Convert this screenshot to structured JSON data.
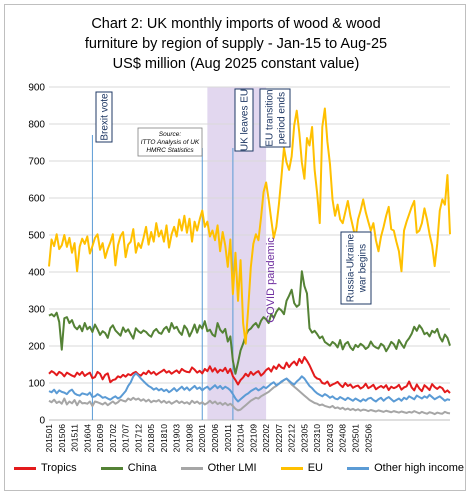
{
  "title_lines": [
    "Chart 2: UK monthly imports of wood & wood",
    "furniture by region of supply - Jan-15 to Aug-25",
    "US$ million (Aug 2025 constant value)"
  ],
  "annotations": {
    "brexit_vote": "Brexit vote",
    "uk_leaves_eu": "UK leaves EU",
    "transition_ends": "EU transition period ends",
    "covid": "COVID pandemic",
    "russia_ukraine": "Russia-Ukraine war begins",
    "source": [
      "Source:",
      "ITTO Analysis of UK",
      "HMRC Statistics"
    ]
  },
  "chart_data": {
    "type": "line",
    "ylim": [
      0,
      900
    ],
    "yticks": [
      0,
      100,
      200,
      300,
      400,
      500,
      600,
      700,
      800,
      900
    ],
    "grid": true,
    "legend_position": "bottom",
    "x_tick_labels": [
      "201501",
      "201506",
      "201511",
      "201604",
      "201609",
      "201702",
      "201707",
      "201712",
      "201805",
      "201810",
      "201903",
      "201908",
      "202001",
      "202006",
      "202011",
      "202104",
      "202109",
      "202202",
      "202207",
      "202212",
      "202305",
      "202310",
      "202403",
      "202408",
      "202501",
      "202506"
    ],
    "x_start": "2015-01",
    "markers": {
      "brexit_vote": "2016-06",
      "covid_start": "2020-03",
      "covid_end": "2022-02",
      "uk_leaves_eu": "2020-01",
      "transition_ends": "2021-01",
      "russia_ukraine": "2022-02"
    },
    "series": [
      {
        "name": "Tropics",
        "color": "#e31a1c",
        "values": [
          125,
          132,
          128,
          121,
          130,
          126,
          118,
          128,
          124,
          120,
          117,
          128,
          122,
          130,
          119,
          124,
          128,
          113,
          116,
          130,
          125,
          110,
          122,
          126,
          102,
          108,
          110,
          118,
          115,
          122,
          117,
          124,
          121,
          127,
          130,
          123,
          120,
          128,
          124,
          133,
          125,
          130,
          122,
          127,
          131,
          136,
          128,
          132,
          125,
          130,
          134,
          127,
          138,
          133,
          130,
          129,
          142,
          136,
          128,
          133,
          126,
          138,
          132,
          145,
          131,
          140,
          128,
          136,
          132,
          141,
          127,
          138,
          118,
          108,
          96,
          108,
          115,
          125,
          118,
          130,
          122,
          128,
          132,
          120,
          126,
          135,
          140,
          131,
          145,
          138,
          150,
          142,
          139,
          155,
          143,
          152,
          158,
          148,
          165,
          154,
          170,
          160,
          148,
          133,
          118,
          112,
          110,
          100,
          98,
          104,
          92,
          96,
          99,
          103,
          95,
          89,
          100,
          92,
          96,
          87,
          91,
          93,
          85,
          89,
          98,
          86,
          90,
          95,
          83,
          88,
          92,
          87,
          94,
          81,
          90,
          86,
          89,
          95,
          82,
          88,
          91,
          104,
          88,
          80,
          96,
          85,
          78,
          94,
          88,
          81,
          97,
          89,
          84,
          90,
          86,
          75,
          80,
          73
        ]
      },
      {
        "name": "China",
        "color": "#548235",
        "values": [
          282,
          286,
          280,
          290,
          265,
          190,
          275,
          278,
          262,
          270,
          252,
          245,
          255,
          240,
          262,
          245,
          252,
          238,
          258,
          245,
          230,
          240,
          235,
          222,
          248,
          256,
          242,
          235,
          228,
          250,
          238,
          245,
          232,
          220,
          248,
          240,
          235,
          242,
          238,
          230,
          225,
          240,
          246,
          236,
          233,
          246,
          252,
          238,
          262,
          247,
          252,
          238,
          230,
          255,
          246,
          226,
          240,
          258,
          236,
          256,
          247,
          267,
          240,
          244,
          231,
          226,
          262,
          244,
          236,
          246,
          212,
          226,
          160,
          125,
          155,
          188,
          206,
          228,
          242,
          247,
          256,
          262,
          250,
          268,
          278,
          272,
          262,
          286,
          276,
          292,
          302,
          296,
          286,
          322,
          336,
          352,
          316,
          306,
          312,
          402,
          362,
          342,
          248,
          236,
          241,
          232,
          221,
          226,
          211,
          206,
          201,
          211,
          206,
          196,
          216,
          191,
          206,
          211,
          196,
          189,
          203,
          197,
          206,
          201,
          192,
          197,
          212,
          201,
          196,
          193,
          206,
          201,
          186,
          197,
          211,
          205,
          192,
          216,
          205,
          195,
          212,
          221,
          233,
          252,
          241,
          256,
          247,
          232,
          236,
          226,
          241,
          236,
          246,
          224,
          212,
          231,
          222,
          201
        ]
      },
      {
        "name": "Other LMI",
        "color": "#a6a6a6",
        "values": [
          52,
          48,
          55,
          46,
          50,
          44,
          58,
          42,
          50,
          45,
          54,
          40,
          52,
          45,
          46,
          44,
          50,
          38,
          50,
          48,
          45,
          42,
          47,
          40,
          45,
          50,
          44,
          48,
          55,
          52,
          50,
          58,
          54,
          60,
          55,
          58,
          52,
          56,
          50,
          55,
          48,
          52,
          50,
          54,
          47,
          52,
          46,
          50,
          44,
          48,
          52,
          46,
          50,
          45,
          48,
          43,
          52,
          46,
          50,
          44,
          48,
          42,
          46,
          52,
          45,
          50,
          43,
          47,
          41,
          46,
          40,
          44,
          38,
          30,
          26,
          28,
          34,
          40,
          46,
          52,
          56,
          60,
          58,
          64,
          68,
          72,
          76,
          82,
          88,
          92,
          98,
          102,
          108,
          112,
          104,
          96,
          90,
          84,
          78,
          72,
          66,
          60,
          54,
          50,
          46,
          44,
          40,
          42,
          38,
          36,
          34,
          38,
          32,
          34,
          30,
          33,
          28,
          31,
          27,
          30,
          26,
          29,
          25,
          28,
          27,
          24,
          27,
          25,
          23,
          26,
          24,
          22,
          25,
          23,
          21,
          24,
          22,
          20,
          23,
          21,
          19,
          22,
          20,
          24,
          21,
          18,
          22,
          19,
          17,
          21,
          19,
          16,
          20,
          18,
          17,
          22,
          19,
          18
        ]
      },
      {
        "name": "EU",
        "color": "#ffc000",
        "values": [
          415,
          488,
          470,
          502,
          462,
          472,
          500,
          468,
          492,
          452,
          478,
          402,
          468,
          490,
          476,
          496,
          450,
          470,
          492,
          502,
          460,
          478,
          438,
          462,
          480,
          502,
          418,
          472,
          497,
          508,
          440,
          474,
          482,
          516,
          452,
          478,
          465,
          492,
          522,
          474,
          508,
          482,
          532,
          496,
          512,
          482,
          526,
          466,
          502,
          522,
          496,
          542,
          512,
          552,
          506,
          544,
          482,
          536,
          512,
          542,
          566,
          522,
          536,
          496,
          512,
          486,
          526,
          456,
          508,
          472,
          414,
          488,
          340,
          452,
          322,
          432,
          262,
          206,
          302,
          412,
          476,
          502,
          486,
          546,
          616,
          642,
          596,
          542,
          492,
          522,
          582,
          656,
          736,
          696,
          676,
          712,
          796,
          836,
          776,
          696,
          652,
          762,
          742,
          792,
          676,
          612,
          532,
          792,
          842,
          752,
          692,
          596,
          552,
          582,
          542,
          532,
          562,
          592,
          552,
          522,
          492,
          542,
          566,
          596,
          562,
          536,
          512,
          532,
          486,
          456,
          496,
          522,
          552,
          576,
          516,
          512,
          482,
          456,
          402,
          512,
          536,
          556,
          576,
          592,
          506,
          512,
          532,
          572,
          542,
          502,
          472,
          416,
          476,
          566,
          596,
          582,
          662,
          502
        ]
      },
      {
        "name": "Other high income",
        "color": "#5b9bd5",
        "values": [
          78,
          75,
          82,
          72,
          80,
          76,
          74,
          70,
          78,
          82,
          72,
          68,
          66,
          72,
          70,
          68,
          74,
          62,
          64,
          70,
          66,
          60,
          62,
          58,
          55,
          60,
          64,
          58,
          62,
          70,
          78,
          92,
          102,
          118,
          126,
          120,
          112,
          105,
          98,
          92,
          88,
          82,
          86,
          80,
          84,
          78,
          82,
          75,
          80,
          86,
          78,
          84,
          90,
          82,
          88,
          80,
          86,
          92,
          84,
          88,
          80,
          86,
          90,
          82,
          88,
          94,
          86,
          92,
          84,
          90,
          86,
          80,
          70,
          58,
          50,
          56,
          62,
          68,
          72,
          78,
          82,
          86,
          80,
          84,
          90,
          86,
          92,
          98,
          102,
          94,
          98,
          104,
          108,
          112,
          106,
          100,
          96,
          104,
          110,
          118,
          112,
          102,
          92,
          86,
          78,
          72,
          68,
          64,
          70,
          66,
          60,
          64,
          58,
          56,
          62,
          58,
          54,
          60,
          56,
          52,
          58,
          54,
          50,
          56,
          52,
          58,
          60,
          54,
          50,
          56,
          60,
          52,
          58,
          62,
          56,
          50,
          54,
          58,
          52,
          60,
          56,
          64,
          60,
          56,
          66,
          62,
          58,
          64,
          60,
          68,
          62,
          56,
          60,
          64,
          58,
          52,
          56,
          54
        ]
      }
    ]
  }
}
